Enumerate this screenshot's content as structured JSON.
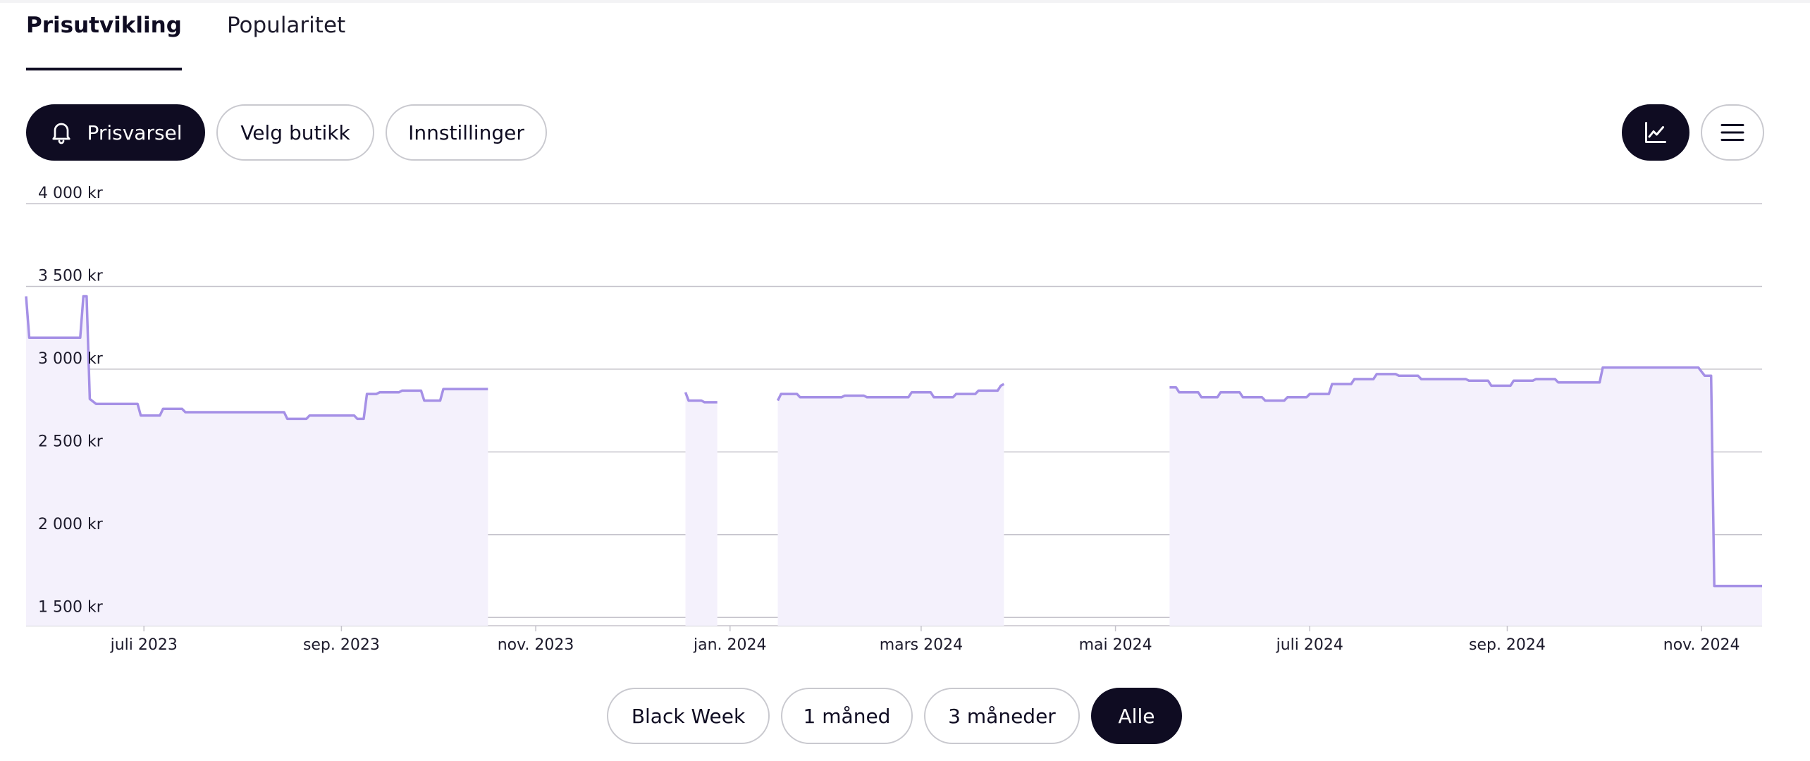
{
  "tabs": [
    {
      "label": "Prisutvikling",
      "active": true
    },
    {
      "label": "Popularitet",
      "active": false
    }
  ],
  "toolbar": {
    "alert_label": "Prisvarsel",
    "store_label": "Velg butikk",
    "settings_label": "Innstillinger",
    "icons": {
      "alert": "bell-icon",
      "chart": "line-chart-icon",
      "list": "hamburger-list-icon"
    }
  },
  "range_buttons": [
    {
      "label": "Black Week",
      "active": false
    },
    {
      "label": "1 måned",
      "active": false
    },
    {
      "label": "3 måneder",
      "active": false
    },
    {
      "label": "Alle",
      "active": true
    }
  ],
  "colors": {
    "dark": "#0f0c22",
    "line": "#a590e6",
    "fill": "#f4f1fc",
    "grid": "#c5c3cb"
  },
  "chart_data": {
    "type": "area",
    "x_type": "date",
    "xlim": [
      "2023-05-25",
      "2024-11-20"
    ],
    "ylim": [
      1450,
      4000
    ],
    "y_ticks": [
      {
        "value": 4000,
        "label": "4 000 kr"
      },
      {
        "value": 3500,
        "label": "3 500 kr"
      },
      {
        "value": 3000,
        "label": "3 000 kr"
      },
      {
        "value": 2500,
        "label": "2 500 kr"
      },
      {
        "value": 2000,
        "label": "2 000 kr"
      },
      {
        "value": 1500,
        "label": "1 500 kr"
      }
    ],
    "x_ticks": [
      {
        "date": "2023-07-01",
        "label": "juli 2023"
      },
      {
        "date": "2023-09-01",
        "label": "sep. 2023"
      },
      {
        "date": "2023-11-01",
        "label": "nov. 2023"
      },
      {
        "date": "2024-01-01",
        "label": "jan. 2024"
      },
      {
        "date": "2024-03-01",
        "label": "mars 2024"
      },
      {
        "date": "2024-05-01",
        "label": "mai 2024"
      },
      {
        "date": "2024-07-01",
        "label": "juli 2024"
      },
      {
        "date": "2024-09-01",
        "label": "sep. 2024"
      },
      {
        "date": "2024-11-01",
        "label": "nov. 2024"
      }
    ],
    "grid": true,
    "segments": [
      {
        "points": [
          [
            "2023-05-25",
            3440
          ],
          [
            "2023-05-26",
            3190
          ],
          [
            "2023-06-11",
            3190
          ],
          [
            "2023-06-12",
            3440
          ],
          [
            "2023-06-13",
            3440
          ],
          [
            "2023-06-14",
            2820
          ],
          [
            "2023-06-16",
            2790
          ],
          [
            "2023-06-29",
            2790
          ],
          [
            "2023-06-30",
            2720
          ],
          [
            "2023-07-06",
            2720
          ],
          [
            "2023-07-07",
            2760
          ],
          [
            "2023-07-13",
            2760
          ],
          [
            "2023-07-14",
            2740
          ],
          [
            "2023-08-14",
            2740
          ],
          [
            "2023-08-15",
            2700
          ],
          [
            "2023-08-21",
            2700
          ],
          [
            "2023-08-22",
            2720
          ],
          [
            "2023-09-05",
            2720
          ],
          [
            "2023-09-06",
            2700
          ],
          [
            "2023-09-08",
            2700
          ],
          [
            "2023-09-09",
            2850
          ],
          [
            "2023-09-12",
            2850
          ],
          [
            "2023-09-13",
            2860
          ],
          [
            "2023-09-19",
            2860
          ],
          [
            "2023-09-20",
            2870
          ],
          [
            "2023-09-26",
            2870
          ],
          [
            "2023-09-27",
            2810
          ],
          [
            "2023-10-02",
            2810
          ],
          [
            "2023-10-03",
            2880
          ],
          [
            "2023-10-17",
            2880
          ]
        ]
      },
      {
        "points": [
          [
            "2023-12-18",
            2860
          ],
          [
            "2023-12-19",
            2810
          ],
          [
            "2023-12-23",
            2810
          ],
          [
            "2023-12-24",
            2800
          ],
          [
            "2023-12-28",
            2800
          ]
        ]
      },
      {
        "points": [
          [
            "2024-01-16",
            2810
          ],
          [
            "2024-01-17",
            2850
          ],
          [
            "2024-01-22",
            2850
          ],
          [
            "2024-01-23",
            2830
          ],
          [
            "2024-02-05",
            2830
          ],
          [
            "2024-02-06",
            2840
          ],
          [
            "2024-02-12",
            2840
          ],
          [
            "2024-02-13",
            2830
          ],
          [
            "2024-02-26",
            2830
          ],
          [
            "2024-02-27",
            2860
          ],
          [
            "2024-03-04",
            2860
          ],
          [
            "2024-03-05",
            2830
          ],
          [
            "2024-03-11",
            2830
          ],
          [
            "2024-03-12",
            2850
          ],
          [
            "2024-03-18",
            2850
          ],
          [
            "2024-03-19",
            2870
          ],
          [
            "2024-03-25",
            2870
          ],
          [
            "2024-03-26",
            2900
          ],
          [
            "2024-03-27",
            2910
          ]
        ]
      },
      {
        "points": [
          [
            "2024-05-18",
            2890
          ],
          [
            "2024-05-20",
            2890
          ],
          [
            "2024-05-21",
            2860
          ],
          [
            "2024-05-27",
            2860
          ],
          [
            "2024-05-28",
            2830
          ],
          [
            "2024-06-02",
            2830
          ],
          [
            "2024-06-03",
            2860
          ],
          [
            "2024-06-09",
            2860
          ],
          [
            "2024-06-10",
            2830
          ],
          [
            "2024-06-16",
            2830
          ],
          [
            "2024-06-17",
            2810
          ],
          [
            "2024-06-23",
            2810
          ],
          [
            "2024-06-24",
            2830
          ],
          [
            "2024-06-30",
            2830
          ],
          [
            "2024-07-01",
            2850
          ],
          [
            "2024-07-07",
            2850
          ],
          [
            "2024-07-08",
            2910
          ],
          [
            "2024-07-14",
            2910
          ],
          [
            "2024-07-15",
            2940
          ],
          [
            "2024-07-21",
            2940
          ],
          [
            "2024-07-22",
            2970
          ],
          [
            "2024-07-28",
            2970
          ],
          [
            "2024-07-29",
            2960
          ],
          [
            "2024-08-04",
            2960
          ],
          [
            "2024-08-05",
            2940
          ],
          [
            "2024-08-19",
            2940
          ],
          [
            "2024-08-20",
            2930
          ],
          [
            "2024-08-26",
            2930
          ],
          [
            "2024-08-27",
            2900
          ],
          [
            "2024-09-02",
            2900
          ],
          [
            "2024-09-03",
            2930
          ],
          [
            "2024-09-09",
            2930
          ],
          [
            "2024-09-10",
            2940
          ],
          [
            "2024-09-16",
            2940
          ],
          [
            "2024-09-17",
            2920
          ],
          [
            "2024-09-30",
            2920
          ],
          [
            "2024-10-01",
            3010
          ],
          [
            "2024-10-31",
            3010
          ],
          [
            "2024-11-02",
            2960
          ],
          [
            "2024-11-04",
            2960
          ],
          [
            "2024-11-05",
            1690
          ],
          [
            "2024-11-20",
            1690
          ]
        ]
      }
    ]
  }
}
